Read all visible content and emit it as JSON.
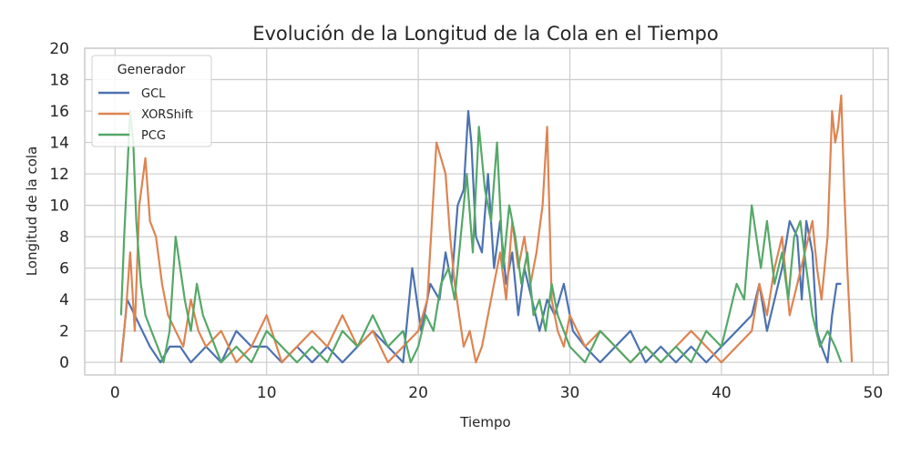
{
  "chart_data": {
    "type": "line",
    "title": "Evolución de la Longitud de la Cola en el Tiempo",
    "xlabel": "Tiempo",
    "ylabel": "Longitud de la cola",
    "xlim": [
      -2,
      51
    ],
    "ylim": [
      -0.8,
      20
    ],
    "xticks": [
      "0",
      "10",
      "20",
      "30",
      "40",
      "50"
    ],
    "yticks": [
      "0",
      "2",
      "4",
      "6",
      "8",
      "10",
      "12",
      "14",
      "16",
      "18",
      "20"
    ],
    "grid": true,
    "legend": {
      "title": "Generador",
      "placement": "top-left"
    },
    "series": [
      {
        "name": "GCL",
        "color": "#4c72b0",
        "x": [
          0.4,
          0.8,
          1.3,
          1.8,
          2.3,
          3.0,
          3.6,
          4.3,
          5.0,
          6.0,
          7.0,
          8.0,
          9.0,
          10.0,
          11.0,
          12.0,
          13.0,
          14.0,
          15.0,
          16.0,
          17.0,
          18.0,
          19.0,
          19.6,
          20.2,
          20.8,
          21.4,
          21.8,
          22.2,
          22.6,
          23.0,
          23.3,
          23.5,
          23.8,
          24.2,
          24.6,
          25.0,
          25.4,
          25.8,
          26.2,
          26.6,
          27.0,
          27.5,
          28.0,
          28.5,
          29.0,
          29.6,
          30.2,
          31.0,
          32.0,
          33.0,
          34.0,
          35.0,
          36.0,
          37.0,
          38.0,
          39.0,
          40.0,
          41.0,
          42.0,
          42.5,
          43.0,
          43.5,
          44.0,
          44.5,
          45.0,
          45.3,
          45.6,
          46.0,
          46.3,
          46.6,
          47.0,
          47.3,
          47.6,
          47.9
        ],
        "values": [
          0,
          4,
          3,
          2,
          1,
          0,
          1,
          1,
          0,
          1,
          0,
          2,
          1,
          1,
          0,
          1,
          0,
          1,
          0,
          1,
          2,
          1,
          0,
          6,
          2,
          5,
          4,
          7,
          5,
          10,
          11,
          16,
          14,
          8,
          7,
          12,
          6,
          9,
          5,
          7,
          3,
          6,
          4,
          2,
          4,
          3,
          5,
          2,
          1,
          0,
          1,
          2,
          0,
          1,
          0,
          1,
          0,
          1,
          2,
          3,
          5,
          2,
          4,
          6,
          9,
          8,
          4,
          9,
          7,
          2,
          1,
          0,
          3,
          5,
          5
        ]
      },
      {
        "name": "XORShift",
        "color": "#dd8452",
        "x": [
          0.4,
          0.7,
          1.0,
          1.3,
          1.6,
          2.0,
          2.3,
          2.7,
          3.1,
          3.5,
          4.0,
          4.5,
          5.0,
          5.5,
          6.0,
          7.0,
          8.0,
          9.0,
          10.0,
          11.0,
          12.0,
          13.0,
          14.0,
          15.0,
          16.0,
          17.0,
          18.0,
          19.0,
          20.0,
          20.6,
          21.2,
          21.5,
          21.8,
          22.1,
          22.4,
          22.7,
          23.0,
          23.4,
          23.8,
          24.2,
          24.6,
          25.0,
          25.4,
          25.8,
          26.2,
          26.6,
          27.0,
          27.4,
          27.8,
          28.2,
          28.5,
          28.8,
          29.2,
          29.6,
          30.0,
          30.5,
          31.0,
          32.0,
          33.0,
          34.0,
          35.0,
          36.0,
          37.0,
          38.0,
          39.0,
          40.0,
          41.0,
          42.0,
          42.5,
          43.0,
          43.5,
          44.0,
          44.5,
          45.0,
          45.5,
          46.0,
          46.3,
          46.6,
          47.0,
          47.3,
          47.5,
          47.7,
          47.9,
          48.1,
          48.3,
          48.6
        ],
        "values": [
          0,
          3,
          7,
          2,
          10,
          13,
          9,
          8,
          5,
          3,
          2,
          1,
          4,
          2,
          1,
          2,
          0,
          1,
          3,
          0,
          1,
          2,
          1,
          3,
          1,
          2,
          0,
          1,
          2,
          4,
          14,
          13,
          12,
          8,
          5,
          3,
          1,
          2,
          0,
          1,
          3,
          5,
          7,
          4,
          9,
          6,
          8,
          5,
          7,
          10,
          15,
          4,
          2,
          1,
          3,
          2,
          1,
          2,
          1,
          0,
          1,
          0,
          1,
          2,
          1,
          0,
          1,
          2,
          5,
          3,
          6,
          8,
          3,
          5,
          7,
          9,
          6,
          4,
          8,
          16,
          14,
          15,
          17,
          11,
          6,
          0
        ]
      },
      {
        "name": "PCG",
        "color": "#55a868",
        "x": [
          0.4,
          0.6,
          0.8,
          1.0,
          1.2,
          1.4,
          1.7,
          2.0,
          2.4,
          2.8,
          3.2,
          3.6,
          4.0,
          4.3,
          4.6,
          5.0,
          5.4,
          5.8,
          6.2,
          6.6,
          7.0,
          8.0,
          9.0,
          10.0,
          11.0,
          12.0,
          13.0,
          14.0,
          15.0,
          16.0,
          17.0,
          18.0,
          19.0,
          19.5,
          20.0,
          20.5,
          21.0,
          21.5,
          22.0,
          22.4,
          22.8,
          23.2,
          23.6,
          24.0,
          24.4,
          24.8,
          25.2,
          25.6,
          26.0,
          26.4,
          26.8,
          27.2,
          27.6,
          28.0,
          28.4,
          28.8,
          29.2,
          29.6,
          30.0,
          31.0,
          32.0,
          33.0,
          34.0,
          35.0,
          36.0,
          37.0,
          38.0,
          39.0,
          40.0,
          40.5,
          41.0,
          41.5,
          42.0,
          42.3,
          42.6,
          43.0,
          43.5,
          44.0,
          44.4,
          44.8,
          45.2,
          45.6,
          46.0,
          46.5,
          47.0,
          47.5,
          47.9
        ],
        "values": [
          3,
          8,
          12,
          16,
          14,
          9,
          5,
          3,
          2,
          1,
          0,
          2,
          8,
          6,
          4,
          2,
          5,
          3,
          2,
          1,
          0,
          1,
          0,
          2,
          1,
          0,
          1,
          0,
          2,
          1,
          3,
          1,
          2,
          0,
          1,
          3,
          2,
          5,
          6,
          4,
          8,
          12,
          7,
          15,
          11,
          9,
          14,
          6,
          10,
          8,
          5,
          7,
          3,
          4,
          2,
          5,
          3,
          2,
          1,
          0,
          2,
          1,
          0,
          1,
          0,
          1,
          0,
          2,
          1,
          3,
          5,
          4,
          10,
          8,
          6,
          9,
          5,
          7,
          4,
          8,
          9,
          6,
          3,
          1,
          2,
          1,
          0
        ]
      }
    ]
  }
}
